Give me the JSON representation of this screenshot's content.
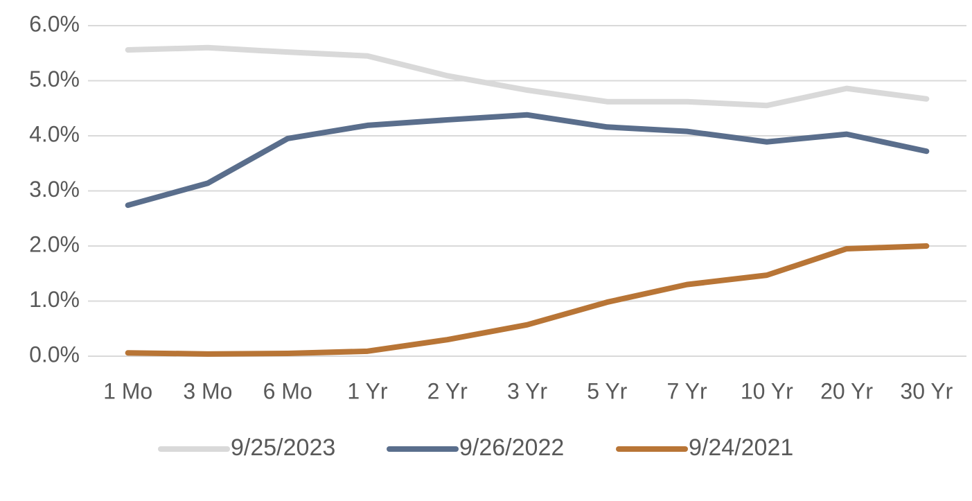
{
  "chart_data": {
    "type": "line",
    "categories": [
      "1 Mo",
      "3 Mo",
      "6 Mo",
      "1 Yr",
      "2 Yr",
      "3 Yr",
      "5 Yr",
      "7 Yr",
      "10 Yr",
      "20 Yr",
      "30 Yr"
    ],
    "series": [
      {
        "name": "9/25/2023",
        "color": "#d9d9d9",
        "values": [
          5.56,
          5.6,
          5.52,
          5.45,
          5.09,
          4.83,
          4.62,
          4.62,
          4.55,
          4.86,
          4.67
        ]
      },
      {
        "name": "9/26/2022",
        "color": "#5a6e8c",
        "values": [
          2.74,
          3.14,
          3.95,
          4.19,
          4.29,
          4.38,
          4.16,
          4.08,
          3.89,
          4.03,
          3.72
        ]
      },
      {
        "name": "9/24/2021",
        "color": "#b87536",
        "values": [
          0.06,
          0.04,
          0.05,
          0.09,
          0.3,
          0.57,
          0.98,
          1.3,
          1.47,
          1.95,
          2.0
        ]
      }
    ],
    "ylim": [
      0,
      6
    ],
    "yticks": [
      {
        "value": 0,
        "label": "0.0%"
      },
      {
        "value": 1,
        "label": "1.0%"
      },
      {
        "value": 2,
        "label": "2.0%"
      },
      {
        "value": 3,
        "label": "3.0%"
      },
      {
        "value": 4,
        "label": "4.0%"
      },
      {
        "value": 5,
        "label": "5.0%"
      },
      {
        "value": 6,
        "label": "6.0%"
      }
    ],
    "grid": true,
    "legend": "bottom"
  }
}
